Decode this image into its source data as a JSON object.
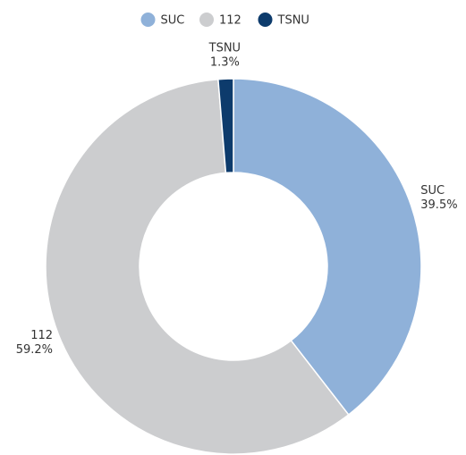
{
  "chart_data": {
    "type": "donut",
    "categories": [
      "SUC",
      "112",
      "TSNU"
    ],
    "values": [
      39.5,
      59.2,
      1.3
    ],
    "value_labels": [
      "39.5%",
      "59.2%",
      "1.3%"
    ],
    "colors": [
      "#8fb1d9",
      "#cccdcf",
      "#0d3b6c"
    ],
    "legend": "top"
  }
}
